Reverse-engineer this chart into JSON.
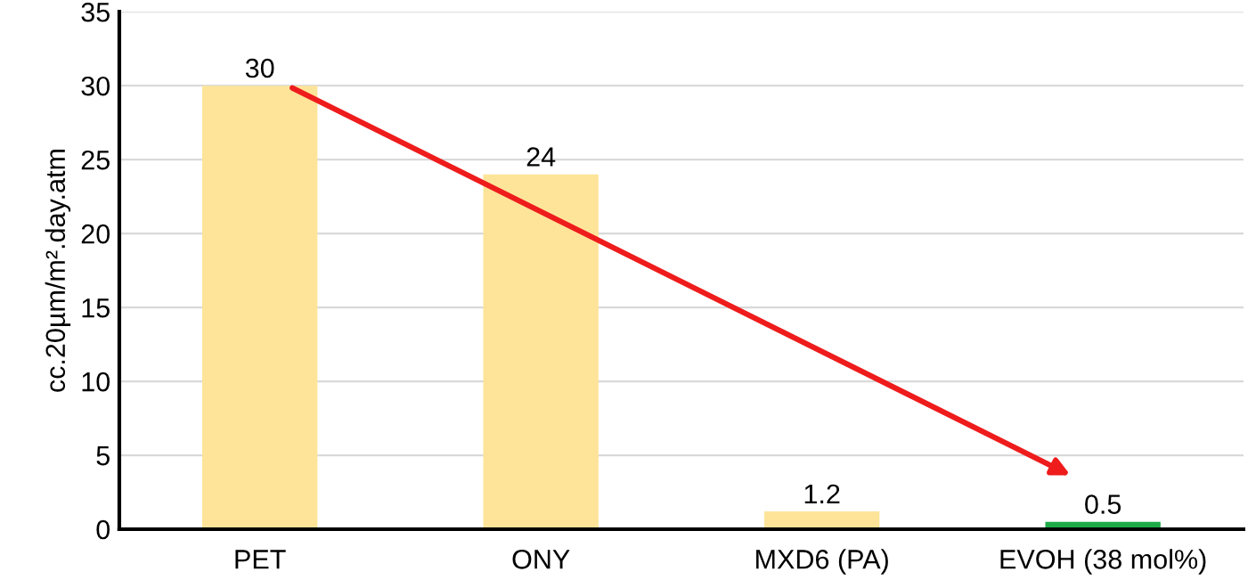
{
  "chart_data": {
    "type": "bar",
    "ylabel": "cc.20µm/m².day.atm",
    "categories": [
      "PET",
      "ONY",
      "MXD6 (PA)",
      "EVOH (38 mol%)"
    ],
    "values": [
      30,
      24,
      1.2,
      0.5
    ],
    "colors": [
      "#fde499",
      "#fde499",
      "#fde499",
      "#1faa4a"
    ],
    "ylim": [
      0,
      35
    ],
    "yticks": [
      0,
      5,
      10,
      15,
      20,
      25,
      30,
      35
    ],
    "grid": "y",
    "data_labels": true
  }
}
